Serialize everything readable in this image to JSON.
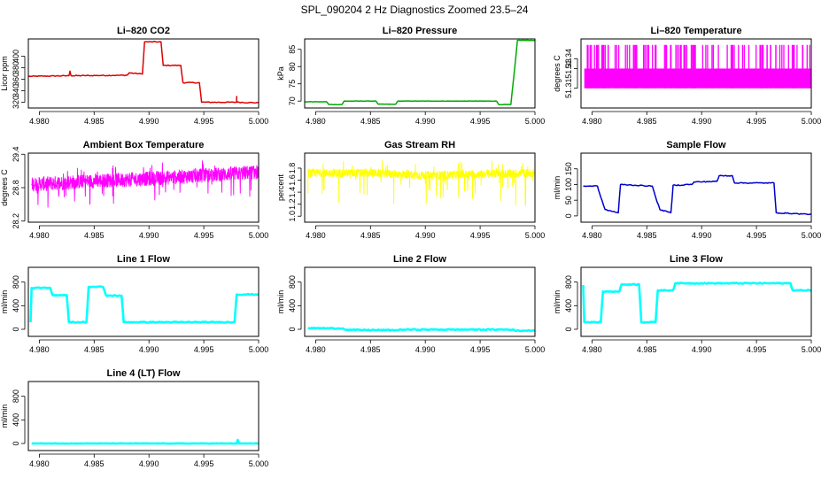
{
  "page": {
    "title": "SPL_090204  2 Hz Diagnostics Zoomed 23.5–24"
  },
  "chart_data": [
    {
      "id": "co2",
      "type": "line",
      "title": "Li–820 CO2",
      "ylabel": "Licor ppm",
      "color": "#dd0000",
      "xlim": [
        4.979,
        5.0
      ],
      "xticks": [
        "4.980",
        "4.985",
        "4.990",
        "4.995",
        "5.000"
      ],
      "ylim": [
        310,
        430
      ],
      "yticks": [
        320,
        340,
        360,
        380,
        400
      ],
      "series": [
        {
          "name": "CO2",
          "x": [
            4.979,
            4.9827,
            4.9828,
            4.9829,
            4.988,
            4.9882,
            4.9894,
            4.9896,
            4.9911,
            4.9913,
            4.9929,
            4.9931,
            4.9946,
            4.9948,
            4.998,
            4.998,
            4.998,
            5.0
          ],
          "y": [
            365,
            366,
            374,
            366,
            367,
            371,
            369,
            425,
            425,
            384,
            384,
            354,
            354,
            320,
            320,
            330,
            320,
            319
          ]
        }
      ]
    },
    {
      "id": "pressure",
      "type": "line",
      "title": "Li–820 Pressure",
      "ylabel": "kPa",
      "color": "#00aa00",
      "xlim": [
        4.979,
        5.0
      ],
      "xticks": [
        "4.980",
        "4.985",
        "4.990",
        "4.995",
        "5.000"
      ],
      "ylim": [
        68,
        88
      ],
      "yticks": [
        70,
        75,
        80,
        85
      ],
      "series": [
        {
          "name": "Pressure",
          "x": [
            4.979,
            4.981,
            4.9812,
            4.9824,
            4.9826,
            4.9855,
            4.9857,
            4.9873,
            4.9875,
            4.9965,
            4.9967,
            4.9978,
            4.9982,
            4.9984,
            5.0
          ],
          "y": [
            69.8,
            69.8,
            69.0,
            69.0,
            70.0,
            70.0,
            69.1,
            69.1,
            70.0,
            70.0,
            69.0,
            69.0,
            81,
            87.6,
            87.6
          ]
        }
      ]
    },
    {
      "id": "li_temp",
      "type": "line",
      "title": "Li–820 Temperature",
      "ylabel": "degrees C",
      "color": "#ff00ff",
      "xlim": [
        4.979,
        5.0
      ],
      "xticks": [
        "4.980",
        "4.985",
        "4.990",
        "4.995",
        "5.000"
      ],
      "ylim": [
        51.29,
        51.36
      ],
      "yticks": [
        51.31,
        51.33,
        51.34
      ],
      "levels": [
        51.31,
        51.33,
        51.35
      ],
      "series": [
        {
          "name": "Temperature",
          "x": [
            4.9793,
            5.0
          ],
          "y": [
            51.33,
            51.33
          ]
        }
      ]
    },
    {
      "id": "ambient",
      "type": "line",
      "title": "Ambient Box Temperature",
      "ylabel": "degrees C",
      "color": "#ff00ff",
      "xlim": [
        4.979,
        5.0
      ],
      "xticks": [
        "4.980",
        "4.985",
        "4.990",
        "4.995",
        "5.000"
      ],
      "ylim": [
        28.18,
        29.42
      ],
      "yticks": [
        28.2,
        28.8,
        29.4
      ],
      "series": [
        {
          "name": "Ambient",
          "x": [
            4.9793,
            4.985,
            4.99,
            4.995,
            5.0
          ],
          "y": [
            28.86,
            28.92,
            28.96,
            29.02,
            29.08
          ]
        }
      ]
    },
    {
      "id": "rh",
      "type": "line",
      "title": "Gas Stream RH",
      "ylabel": "percent",
      "color": "#ffff00",
      "xlim": [
        4.979,
        5.0
      ],
      "xticks": [
        "4.980",
        "4.985",
        "4.990",
        "4.995",
        "5.000"
      ],
      "ylim": [
        0.9,
        2.05
      ],
      "yticks": [
        1.0,
        1.2,
        1.4,
        1.6,
        1.8
      ],
      "series": [
        {
          "name": "RH",
          "x": [
            4.9793,
            4.985,
            4.99,
            4.995,
            5.0
          ],
          "y": [
            1.72,
            1.72,
            1.68,
            1.7,
            1.72
          ]
        }
      ]
    },
    {
      "id": "sample",
      "type": "line",
      "title": "Sample Flow",
      "ylabel": "ml/min",
      "color": "#0000cc",
      "xlim": [
        4.979,
        5.0
      ],
      "xticks": [
        "4.980",
        "4.985",
        "4.990",
        "4.995",
        "5.000"
      ],
      "ylim": [
        -20,
        200
      ],
      "yticks": [
        0,
        50,
        100,
        150
      ],
      "series": [
        {
          "name": "Sample",
          "x": [
            4.9792,
            4.9805,
            4.9808,
            4.9812,
            4.9824,
            4.9826,
            4.9855,
            4.9858,
            4.9862,
            4.9872,
            4.9874,
            4.9882,
            4.9885,
            4.9891,
            4.9893,
            4.9914,
            4.9916,
            4.9928,
            4.993,
            4.9966,
            4.9968,
            5.0
          ],
          "y": [
            95,
            95,
            60,
            20,
            10,
            100,
            95,
            60,
            20,
            10,
            98,
            98,
            100,
            100,
            108,
            110,
            128,
            128,
            105,
            105,
            10,
            5
          ]
        }
      ]
    },
    {
      "id": "line1",
      "type": "line",
      "title": "Line 1 Flow",
      "ylabel": "ml/min",
      "color": "#00ffff",
      "xlim": [
        4.979,
        5.0
      ],
      "xticks": [
        "4.980",
        "4.985",
        "4.990",
        "4.995",
        "5.000"
      ],
      "ylim": [
        -120,
        1050
      ],
      "yticks": [
        0,
        400,
        800
      ],
      "series": [
        {
          "name": "Line 1",
          "x": [
            4.9792,
            4.9793,
            4.9796,
            4.981,
            4.9812,
            4.9825,
            4.9827,
            4.9843,
            4.9845,
            4.9858,
            4.9861,
            4.9875,
            4.9877,
            4.9978,
            4.998,
            5.0
          ],
          "y": [
            120,
            700,
            700,
            700,
            580,
            580,
            120,
            120,
            720,
            720,
            570,
            570,
            120,
            120,
            590,
            590
          ]
        }
      ]
    },
    {
      "id": "line2",
      "type": "line",
      "title": "Line 2 Flow",
      "ylabel": "ml/min",
      "color": "#00ffff",
      "xlim": [
        4.979,
        5.0
      ],
      "xticks": [
        "4.980",
        "4.985",
        "4.990",
        "4.995",
        "5.000"
      ],
      "ylim": [
        -120,
        1050
      ],
      "yticks": [
        0,
        400,
        800
      ],
      "series": [
        {
          "name": "Line 2",
          "x": [
            4.9793,
            4.9825,
            4.9828,
            4.9875,
            4.9878,
            4.998,
            4.9982,
            5.0
          ],
          "y": [
            20,
            15,
            -10,
            -15,
            -5,
            -5,
            -25,
            -20
          ]
        }
      ]
    },
    {
      "id": "line3",
      "type": "line",
      "title": "Line 3 Flow",
      "ylabel": "ml/min",
      "color": "#00ffff",
      "xlim": [
        4.979,
        5.0
      ],
      "xticks": [
        "4.980",
        "4.985",
        "4.990",
        "4.995",
        "5.000"
      ],
      "ylim": [
        -120,
        1050
      ],
      "yticks": [
        0,
        400,
        800
      ],
      "series": [
        {
          "name": "Line 3",
          "x": [
            4.9792,
            4.9793,
            4.9796,
            4.9808,
            4.981,
            4.9825,
            4.9827,
            4.9843,
            4.9845,
            4.9858,
            4.986,
            4.9874,
            4.9876,
            4.9981,
            4.9983,
            5.0
          ],
          "y": [
            750,
            120,
            120,
            120,
            640,
            640,
            760,
            760,
            120,
            120,
            660,
            660,
            780,
            780,
            660,
            660
          ]
        }
      ]
    },
    {
      "id": "line4",
      "type": "line",
      "title": "Line 4 (LT) Flow",
      "ylabel": "ml/min",
      "color": "#00ffff",
      "xlim": [
        4.979,
        5.0
      ],
      "xticks": [
        "4.980",
        "4.985",
        "4.990",
        "4.995",
        "5.000"
      ],
      "ylim": [
        -120,
        1050
      ],
      "yticks": [
        0,
        400,
        800
      ],
      "series": [
        {
          "name": "Line 4",
          "x": [
            4.9793,
            4.998,
            4.9981,
            4.9982,
            5.0
          ],
          "y": [
            0,
            0,
            60,
            0,
            0
          ]
        }
      ]
    }
  ]
}
